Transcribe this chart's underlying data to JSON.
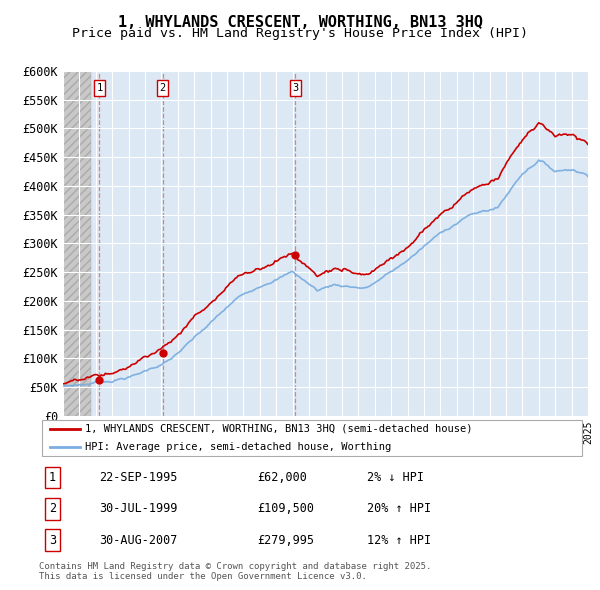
{
  "title": "1, WHYLANDS CRESCENT, WORTHING, BN13 3HQ",
  "subtitle": "Price paid vs. HM Land Registry's House Price Index (HPI)",
  "title_fontsize": 11,
  "subtitle_fontsize": 9.5,
  "background_color": "#ffffff",
  "plot_bg_color": "#dce9f5",
  "grid_color": "#ffffff",
  "sale_dates_float": [
    1995.72,
    1999.58,
    2007.66
  ],
  "sale_prices": [
    62000,
    109500,
    279995
  ],
  "sale_labels": [
    "1",
    "2",
    "3"
  ],
  "sale_info": [
    {
      "label": "1",
      "date": "22-SEP-1995",
      "price": "£62,000",
      "hpi": "2% ↓ HPI"
    },
    {
      "label": "2",
      "date": "30-JUL-1999",
      "price": "£109,500",
      "hpi": "20% ↑ HPI"
    },
    {
      "label": "3",
      "date": "30-AUG-2007",
      "price": "£279,995",
      "hpi": "12% ↑ HPI"
    }
  ],
  "legend_line1": "1, WHYLANDS CRESCENT, WORTHING, BN13 3HQ (semi-detached house)",
  "legend_line2": "HPI: Average price, semi-detached house, Worthing",
  "footer": "Contains HM Land Registry data © Crown copyright and database right 2025.\nThis data is licensed under the Open Government Licence v3.0.",
  "ylim": [
    0,
    600000
  ],
  "ytick_values": [
    0,
    50000,
    100000,
    150000,
    200000,
    250000,
    300000,
    350000,
    400000,
    450000,
    500000,
    550000,
    600000
  ],
  "ytick_labels": [
    "£0",
    "£50K",
    "£100K",
    "£150K",
    "£200K",
    "£250K",
    "£300K",
    "£350K",
    "£400K",
    "£450K",
    "£500K",
    "£550K",
    "£600K"
  ],
  "xmin": 1993.5,
  "xmax": 2025.5,
  "red_line_color": "#cc0000",
  "blue_line_color": "#7aade0",
  "marker_color": "#cc0000",
  "dashed_color": "#e87070"
}
